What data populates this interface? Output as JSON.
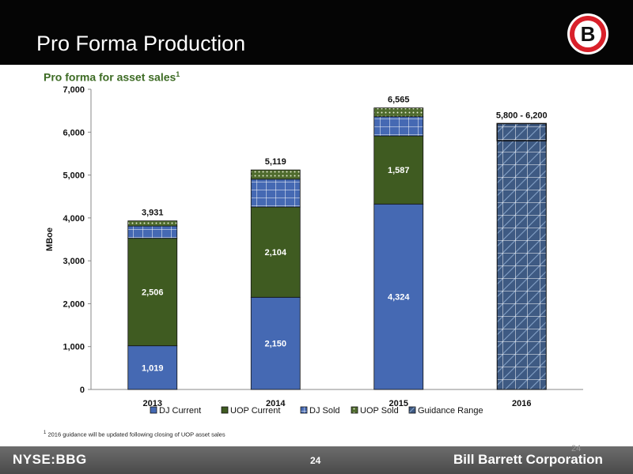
{
  "slide": {
    "title": "Pro Forma Production",
    "subtitle": "Pro forma for asset sales",
    "subtitle_sup": "1",
    "footnote_sup": "1",
    "footnote": "2016 guidance will be updated following closing of UOP asset sales"
  },
  "footer": {
    "ticker": "NYSE:BBG",
    "page_number": "24",
    "ghost_page_number": "24",
    "company": "Bill Barrett Corporation"
  },
  "logo": {
    "letter": "B",
    "icon": "bill-barrett-logo-icon"
  },
  "colors": {
    "header_bg": "#050505",
    "subtitle": "#3d6b24",
    "dj_current": "#4569b3",
    "uop_current": "#3f5b21",
    "dj_sold": "#4569b3",
    "uop_sold": "#4f6b2e",
    "guidance": "#3e5a83"
  },
  "chart_data": {
    "type": "bar",
    "stacked": true,
    "categories": [
      "2013",
      "2014",
      "2015",
      "2016"
    ],
    "ylabel": "MBoe",
    "ylim": [
      0,
      7000
    ],
    "yticks": [
      0,
      1000,
      2000,
      3000,
      4000,
      5000,
      6000,
      7000
    ],
    "ytick_labels": [
      "0",
      "1,000",
      "2,000",
      "3,000",
      "4,000",
      "5,000",
      "6,000",
      "7,000"
    ],
    "legend_position": "bottom",
    "series": [
      {
        "name": "DJ Current",
        "values": [
          1019,
          2150,
          4324,
          null
        ],
        "labels": [
          "1,019",
          "2,150",
          "4,324",
          ""
        ]
      },
      {
        "name": "UOP Current",
        "values": [
          2506,
          2104,
          1587,
          null
        ],
        "labels": [
          "2,506",
          "2,104",
          "1,587",
          ""
        ]
      },
      {
        "name": "DJ Sold",
        "values": [
          286,
          650,
          450,
          null
        ],
        "labels": [
          "",
          "",
          "",
          ""
        ]
      },
      {
        "name": "UOP Sold",
        "values": [
          120,
          215,
          204,
          null
        ],
        "labels": [
          "",
          "",
          "",
          ""
        ]
      },
      {
        "name": "Guidance Range",
        "values": [
          null,
          null,
          null,
          6200
        ],
        "labels": [
          "",
          "",
          "",
          ""
        ]
      }
    ],
    "guidance_range": [
      5800,
      6200
    ],
    "totals": [
      "3,931",
      "5,119",
      "6,565",
      "5,800 - 6,200"
    ]
  }
}
